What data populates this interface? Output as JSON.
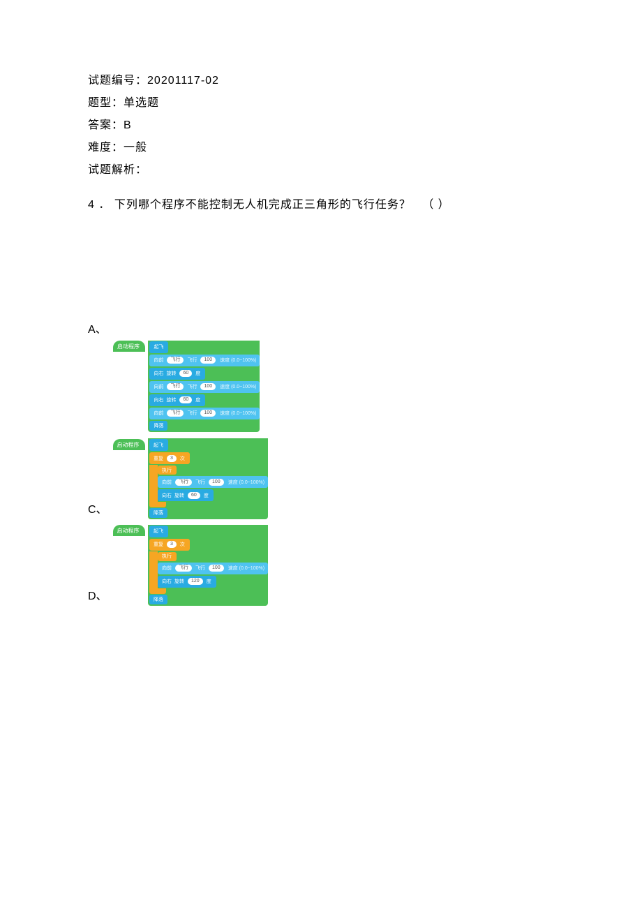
{
  "meta": {
    "id_label": "试题编号：",
    "id_value": "20201117-02",
    "type_label": "题型：",
    "type_value": "单选题",
    "answer_label": "答案：",
    "answer_value": "B",
    "difficulty_label": "难度：",
    "difficulty_value": "一般",
    "analysis_label": "试题解析："
  },
  "question": {
    "number": "4",
    "dot": "．",
    "text": "下列哪个程序不能控制无人机完成正三角形的飞行任务？",
    "paren": "（&nbsp;）"
  },
  "options": {
    "A": "A、",
    "C": "C、",
    "D": "D、"
  },
  "colors": {
    "green": "#4cbf56",
    "blue": "#29abe2",
    "blue_light": "#4fc3f0",
    "orange": "#f6a623",
    "white": "#ffffff",
    "text": "#000000"
  },
  "blockA": {
    "hat": "启动程序",
    "takeoff": "起飞",
    "rows": [
      {
        "type": "fwd",
        "label": "向前",
        "mid": "飞行",
        "val": "100",
        "tail": "速度 (0.0~100%)"
      },
      {
        "type": "turn",
        "label": "向右",
        "mid": "旋转",
        "val": "60",
        "unit": "度"
      },
      {
        "type": "fwd",
        "label": "向前",
        "mid": "飞行",
        "val": "100",
        "tail": "速度 (0.0~100%)"
      },
      {
        "type": "turn",
        "label": "向右",
        "mid": "旋转",
        "val": "60",
        "unit": "度"
      },
      {
        "type": "fwd",
        "label": "向前",
        "mid": "飞行",
        "val": "100",
        "tail": "速度 (0.0~100%)"
      }
    ],
    "land": "降落"
  },
  "blockC": {
    "hat": "启动程序",
    "takeoff": "起飞",
    "repeat_label": "重复",
    "repeat_n": "3",
    "repeat_unit": "次",
    "exec": "执行",
    "body": [
      {
        "type": "fwd",
        "label": "向前",
        "mid": "飞行",
        "val": "100",
        "tail": "速度 (0.0~100%)"
      },
      {
        "type": "turn",
        "label": "向右",
        "mid": "旋转",
        "val": "60",
        "unit": "度"
      }
    ],
    "land": "降落"
  },
  "blockD": {
    "hat": "启动程序",
    "takeoff": "起飞",
    "repeat_label": "重复",
    "repeat_n": "3",
    "repeat_unit": "次",
    "exec": "执行",
    "body": [
      {
        "type": "fwd",
        "label": "向前",
        "mid": "飞行",
        "val": "100",
        "tail": "速度 (0.0~100%)"
      },
      {
        "type": "turn",
        "label": "向右",
        "mid": "旋转",
        "val": "120",
        "unit": "度"
      }
    ],
    "land": "降落"
  }
}
